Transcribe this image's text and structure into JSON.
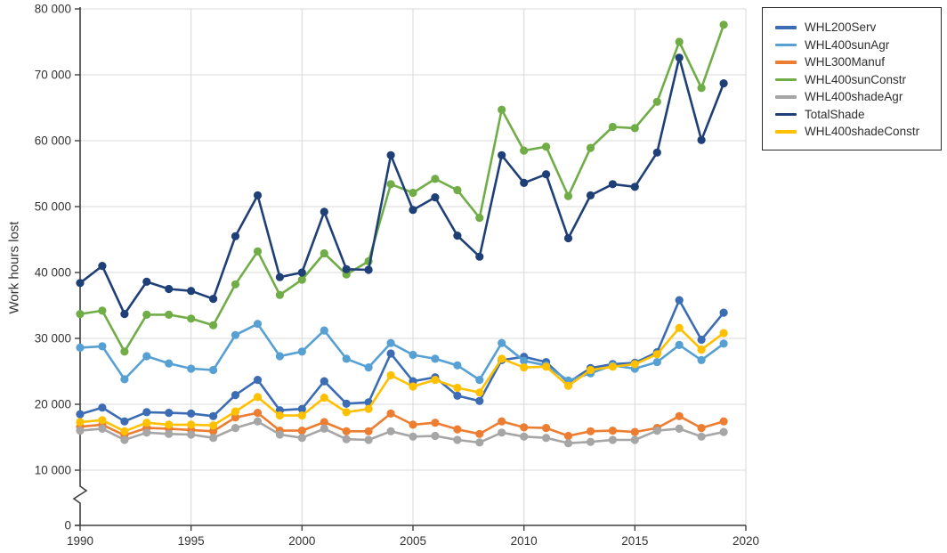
{
  "chart_data": {
    "type": "line",
    "title": "",
    "xlabel": "",
    "ylabel": "Work hours lost",
    "ylim": [
      0,
      80000
    ],
    "axis_break_between": [
      0,
      10000
    ],
    "grid": true,
    "legend_position": "outside-top-right",
    "x": [
      1990,
      1991,
      1992,
      1993,
      1994,
      1995,
      1996,
      1997,
      1998,
      1999,
      2000,
      2001,
      2002,
      2003,
      2004,
      2005,
      2006,
      2007,
      2008,
      2009,
      2010,
      2011,
      2012,
      2013,
      2014,
      2015,
      2016,
      2017,
      2018,
      2019
    ],
    "x_tick_labels": [
      "1990",
      "1995",
      "2000",
      "2005",
      "2010",
      "2015",
      "2020"
    ],
    "x_tick_values": [
      1990,
      1995,
      2000,
      2005,
      2010,
      2015,
      2020
    ],
    "y_tick_labels": [
      "0",
      "10 000",
      "20 000",
      "30 000",
      "40 000",
      "50 000",
      "60 000",
      "70 000",
      "80 000"
    ],
    "y_tick_values": [
      0,
      10000,
      20000,
      30000,
      40000,
      50000,
      60000,
      70000,
      80000
    ],
    "series": [
      {
        "name": "WHL200Serv",
        "color": "#3b6cb4",
        "values": [
          18500,
          19500,
          17400,
          18800,
          18700,
          18600,
          18200,
          21400,
          23700,
          19100,
          19300,
          23500,
          20100,
          20300,
          27700,
          23500,
          24100,
          21300,
          20500,
          26700,
          27200,
          26400,
          23300,
          25500,
          26100,
          26300,
          27900,
          35800,
          29800,
          33900
        ]
      },
      {
        "name": "WHL400sunAgr",
        "color": "#56a0d3",
        "values": [
          28600,
          28800,
          23800,
          27300,
          26200,
          25400,
          25200,
          30500,
          32200,
          27300,
          28000,
          31200,
          26900,
          25600,
          29300,
          27500,
          26900,
          25900,
          23700,
          29300,
          26600,
          25900,
          23600,
          24700,
          25900,
          25400,
          26400,
          29000,
          26700,
          29200
        ]
      },
      {
        "name": "WHL300Manuf",
        "color": "#ed7d31",
        "values": [
          16600,
          16900,
          15300,
          16400,
          16300,
          16100,
          15900,
          18000,
          18700,
          16000,
          16000,
          17300,
          15900,
          15900,
          18600,
          16900,
          17200,
          16200,
          15500,
          17400,
          16500,
          16400,
          15200,
          15900,
          16000,
          15800,
          16400,
          18200,
          16400,
          17400
        ]
      },
      {
        "name": "WHL400sunConstr",
        "color": "#70ad47",
        "values": [
          33700,
          34200,
          28000,
          33600,
          33600,
          33000,
          32000,
          38200,
          43200,
          36600,
          38900,
          42900,
          39700,
          41700,
          53400,
          52100,
          54200,
          52500,
          48300,
          64700,
          58500,
          59100,
          51600,
          58900,
          62100,
          61900,
          65900,
          75000,
          68000,
          77600
        ]
      },
      {
        "name": "WHL400shadeAgr",
        "color": "#a6a6a6",
        "values": [
          16000,
          16300,
          14600,
          15700,
          15500,
          15400,
          14900,
          16400,
          17400,
          15400,
          14900,
          16300,
          14700,
          14600,
          15900,
          15100,
          15200,
          14600,
          14200,
          15700,
          15100,
          14900,
          14100,
          14300,
          14600,
          14600,
          16000,
          16300,
          15100,
          15800
        ]
      },
      {
        "name": "TotalShade",
        "color": "#1f4077",
        "values": [
          38400,
          41000,
          33700,
          38600,
          37500,
          37200,
          36000,
          45500,
          51700,
          39300,
          40000,
          49200,
          40500,
          40400,
          57800,
          49500,
          51400,
          45600,
          42400,
          57800,
          53600,
          54900,
          45200,
          51700,
          53400,
          53000,
          58200,
          72600,
          60100,
          68700
        ]
      },
      {
        "name": "WHL400shadeConstr",
        "color": "#ffc000",
        "values": [
          17300,
          17600,
          15900,
          17200,
          16900,
          16900,
          16800,
          18900,
          21100,
          18300,
          18300,
          21000,
          18800,
          19300,
          24400,
          22700,
          23700,
          22500,
          21800,
          26900,
          25600,
          25700,
          22800,
          25200,
          25700,
          26100,
          27600,
          31600,
          28300,
          30800
        ]
      }
    ],
    "style": {
      "grid_color": "#d9d9d9",
      "axis_color": "#3f3f3f",
      "tick_label_color": "#333333",
      "marker_radius": 4.6,
      "line_width": 2.6
    }
  }
}
